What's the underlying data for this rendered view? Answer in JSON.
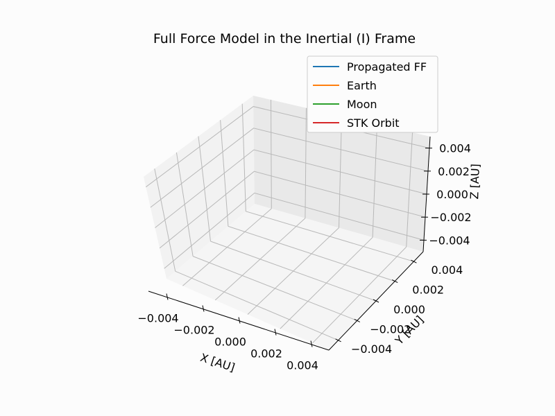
{
  "chart_data": {
    "type": "line",
    "projection": "3d",
    "title": "Full Force Model in the Inertial (I) Frame",
    "xlabel": "X [AU]",
    "ylabel": "Y [AU]",
    "zlabel": "Z [AU]",
    "xlim": [
      -0.005,
      0.005
    ],
    "ylim": [
      -0.005,
      0.005
    ],
    "zlim": [
      -0.005,
      0.005
    ],
    "x_ticks": [
      "−0.004",
      "−0.002",
      "0.000",
      "0.002",
      "0.004"
    ],
    "y_ticks": [
      "−0.004",
      "−0.002",
      "0.000",
      "0.002",
      "0.004"
    ],
    "z_ticks": [
      "−0.004",
      "−0.002",
      "0.000",
      "0.002",
      "0.004"
    ],
    "grid": true,
    "legend_position": "top-right",
    "series": [
      {
        "name": "Propagated FF",
        "color": "#1f77b4",
        "points": []
      },
      {
        "name": "Earth",
        "color": "#ff7f0e",
        "points": []
      },
      {
        "name": "Moon",
        "color": "#2ca02c",
        "points": []
      },
      {
        "name": "STK Orbit",
        "color": "#d62728",
        "points": []
      }
    ]
  }
}
